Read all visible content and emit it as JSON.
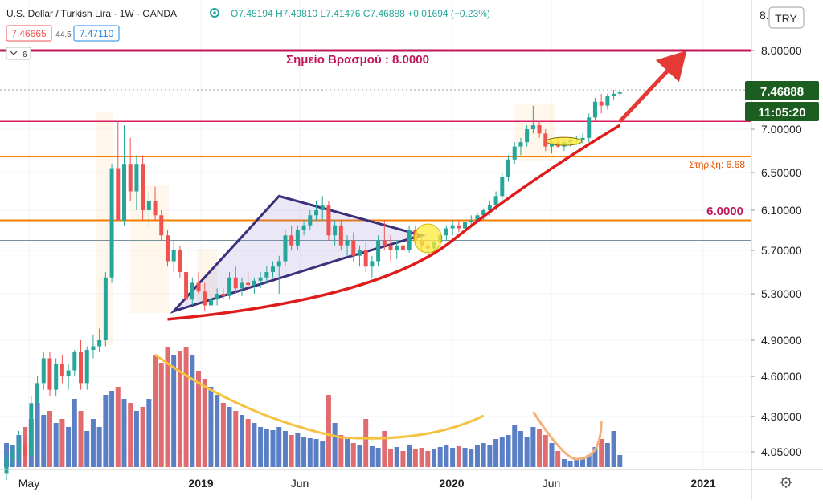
{
  "header": {
    "symbol": "U.S. Dollar / Turkish Lira · 1W · OANDA",
    "ohlc": "O7.45194 H7.49810 L7.41476 C7.46888 +0.01694 (+0.23%)",
    "bid": "7.46665",
    "spread": "44.5",
    "ask": "7.47110",
    "indicator_count": "6"
  },
  "currency": "TRY",
  "price_label": "7.46888",
  "countdown": "11:05:20",
  "annotations": {
    "boiling": "Σημείο Βρασμού : 8.0000",
    "support": "Στήριξη: 6.68",
    "level6": "6.0000"
  },
  "colors": {
    "up": "#26a69a",
    "down": "#ef5350",
    "vol_up": "#5b7fc4",
    "vol_down": "#e06c70",
    "boiling_line": "#c2185b",
    "orange_line": "#f57c00",
    "arrow": "#e53935",
    "triangle": "#3d2f7a",
    "curve": "#f5c242",
    "price_badge": "#1b5e20"
  },
  "chart_data": {
    "type": "candlestick",
    "x_ticks": [
      "May",
      "2019",
      "Jun",
      "2020",
      "Jun",
      "2021"
    ],
    "y_ticks": [
      "8.00000",
      "7.00000",
      "6.50000",
      "6.10000",
      "5.70000",
      "5.30000",
      "4.90000",
      "4.60000",
      "4.30000",
      "4.05000"
    ],
    "y_top_partial": "8.",
    "ylim": [
      3.85,
      8.35
    ],
    "levels": [
      8.0,
      7.1,
      6.68,
      6.0,
      5.8
    ],
    "candles": [
      [
        3.9,
        4.05,
        3.85,
        4.0
      ],
      [
        4.0,
        4.1,
        3.95,
        4.05
      ],
      [
        4.05,
        4.2,
        3.98,
        4.1
      ],
      [
        4.1,
        4.15,
        3.95,
        4.02
      ],
      [
        4.02,
        4.45,
        4.0,
        4.4
      ],
      [
        4.4,
        4.6,
        4.35,
        4.55
      ],
      [
        4.55,
        4.8,
        4.5,
        4.75
      ],
      [
        4.75,
        4.8,
        4.45,
        4.5
      ],
      [
        4.5,
        4.75,
        4.45,
        4.7
      ],
      [
        4.7,
        4.78,
        4.55,
        4.6
      ],
      [
        4.6,
        4.7,
        4.5,
        4.65
      ],
      [
        4.65,
        4.82,
        4.6,
        4.8
      ],
      [
        4.8,
        4.9,
        4.5,
        4.55
      ],
      [
        4.55,
        4.85,
        4.5,
        4.82
      ],
      [
        4.82,
        4.95,
        4.75,
        4.85
      ],
      [
        4.85,
        5.0,
        4.8,
        4.9
      ],
      [
        4.9,
        5.5,
        4.85,
        5.45
      ],
      [
        5.45,
        6.6,
        5.4,
        6.55
      ],
      [
        6.55,
        7.1,
        6.0,
        6.0
      ],
      [
        6.0,
        7.05,
        5.95,
        6.6
      ],
      [
        6.6,
        6.9,
        6.2,
        6.3
      ],
      [
        6.3,
        6.7,
        6.1,
        6.6
      ],
      [
        6.6,
        6.7,
        6.0,
        6.1
      ],
      [
        6.1,
        6.3,
        5.95,
        6.2
      ],
      [
        6.2,
        6.35,
        6.0,
        6.05
      ],
      [
        6.05,
        6.1,
        5.8,
        5.85
      ],
      [
        5.85,
        5.9,
        5.55,
        5.6
      ],
      [
        5.6,
        5.8,
        5.5,
        5.7
      ],
      [
        5.7,
        5.75,
        5.45,
        5.5
      ],
      [
        5.5,
        5.55,
        5.2,
        5.25
      ],
      [
        5.25,
        5.45,
        5.2,
        5.4
      ],
      [
        5.4,
        5.5,
        5.3,
        5.32
      ],
      [
        5.32,
        5.4,
        5.15,
        5.2
      ],
      [
        5.2,
        5.3,
        5.1,
        5.25
      ],
      [
        5.25,
        5.35,
        5.2,
        5.3
      ],
      [
        5.3,
        5.35,
        5.25,
        5.28
      ],
      [
        5.28,
        5.5,
        5.25,
        5.45
      ],
      [
        5.45,
        5.55,
        5.3,
        5.35
      ],
      [
        5.35,
        5.45,
        5.28,
        5.4
      ],
      [
        5.4,
        5.5,
        5.35,
        5.38
      ],
      [
        5.38,
        5.45,
        5.3,
        5.42
      ],
      [
        5.42,
        5.5,
        5.35,
        5.45
      ],
      [
        5.45,
        5.55,
        5.4,
        5.5
      ],
      [
        5.5,
        5.6,
        5.45,
        5.55
      ],
      [
        5.55,
        5.65,
        5.3,
        5.6
      ],
      [
        5.6,
        5.9,
        5.55,
        5.85
      ],
      [
        5.85,
        5.95,
        5.7,
        5.75
      ],
      [
        5.75,
        5.95,
        5.7,
        5.9
      ],
      [
        5.9,
        6.0,
        5.85,
        5.95
      ],
      [
        5.95,
        6.1,
        5.9,
        6.05
      ],
      [
        6.05,
        6.2,
        6.0,
        6.1
      ],
      [
        6.1,
        6.25,
        6.0,
        6.15
      ],
      [
        6.15,
        6.2,
        5.8,
        5.85
      ],
      [
        5.85,
        6.0,
        5.75,
        5.95
      ],
      [
        5.95,
        6.0,
        5.7,
        5.75
      ],
      [
        5.75,
        5.85,
        5.65,
        5.8
      ],
      [
        5.8,
        5.88,
        5.6,
        5.65
      ],
      [
        5.65,
        5.75,
        5.55,
        5.7
      ],
      [
        5.7,
        5.78,
        5.5,
        5.55
      ],
      [
        5.55,
        5.65,
        5.45,
        5.6
      ],
      [
        5.6,
        5.85,
        5.55,
        5.8
      ],
      [
        5.8,
        6.0,
        5.7,
        5.75
      ],
      [
        5.75,
        5.85,
        5.6,
        5.7
      ],
      [
        5.7,
        5.8,
        5.62,
        5.75
      ],
      [
        5.75,
        5.85,
        5.65,
        5.7
      ],
      [
        5.7,
        5.95,
        5.68,
        5.9
      ],
      [
        5.9,
        5.95,
        5.75,
        5.8
      ],
      [
        5.8,
        5.85,
        5.7,
        5.75
      ],
      [
        5.75,
        5.82,
        5.68,
        5.72
      ],
      [
        5.72,
        5.8,
        5.68,
        5.78
      ],
      [
        5.78,
        5.9,
        5.75,
        5.85
      ],
      [
        5.85,
        5.95,
        5.8,
        5.92
      ],
      [
        5.92,
        6.0,
        5.85,
        5.95
      ],
      [
        5.95,
        6.0,
        5.88,
        5.92
      ],
      [
        5.92,
        6.0,
        5.9,
        5.98
      ],
      [
        5.98,
        6.05,
        5.95,
        6.0
      ],
      [
        6.0,
        6.08,
        5.97,
        6.05
      ],
      [
        6.05,
        6.12,
        6.0,
        6.1
      ],
      [
        6.1,
        6.2,
        6.05,
        6.15
      ],
      [
        6.15,
        6.3,
        6.1,
        6.25
      ],
      [
        6.25,
        6.5,
        6.2,
        6.45
      ],
      [
        6.45,
        6.7,
        6.4,
        6.65
      ],
      [
        6.65,
        6.85,
        6.6,
        6.8
      ],
      [
        6.8,
        6.9,
        6.7,
        6.85
      ],
      [
        6.85,
        7.05,
        6.8,
        7.0
      ],
      [
        7.0,
        7.3,
        6.95,
        7.05
      ],
      [
        7.05,
        7.1,
        6.9,
        6.95
      ],
      [
        6.95,
        7.0,
        6.75,
        6.8
      ],
      [
        6.8,
        6.88,
        6.72,
        6.85
      ],
      [
        6.85,
        6.9,
        6.78,
        6.8
      ],
      [
        6.8,
        6.88,
        6.75,
        6.85
      ],
      [
        6.85,
        6.9,
        6.8,
        6.87
      ],
      [
        6.87,
        6.92,
        6.82,
        6.88
      ],
      [
        6.88,
        6.95,
        6.83,
        6.9
      ],
      [
        6.9,
        7.2,
        6.85,
        7.15
      ],
      [
        7.15,
        7.4,
        7.1,
        7.35
      ],
      [
        7.35,
        7.45,
        7.2,
        7.3
      ],
      [
        7.3,
        7.45,
        7.25,
        7.42
      ],
      [
        7.42,
        7.5,
        7.38,
        7.45
      ],
      [
        7.45194,
        7.4981,
        7.41476,
        7.46888
      ]
    ],
    "volume": [
      30,
      28,
      40,
      50,
      60,
      80,
      65,
      70,
      55,
      60,
      50,
      85,
      70,
      45,
      60,
      50,
      90,
      95,
      100,
      85,
      80,
      70,
      75,
      85,
      140,
      130,
      150,
      140,
      145,
      150,
      140,
      120,
      110,
      100,
      90,
      80,
      75,
      70,
      65,
      60,
      55,
      50,
      48,
      46,
      50,
      45,
      40,
      42,
      38,
      36,
      35,
      33,
      90,
      55,
      40,
      35,
      30,
      28,
      60,
      26,
      24,
      45,
      22,
      25,
      20,
      28,
      22,
      24,
      20,
      22,
      25,
      27,
      24,
      26,
      24,
      22,
      28,
      30,
      28,
      35,
      38,
      40,
      52,
      45,
      38,
      50,
      48,
      40,
      30,
      20,
      10,
      8,
      10,
      12,
      15,
      25,
      35,
      30,
      45,
      15
    ]
  }
}
